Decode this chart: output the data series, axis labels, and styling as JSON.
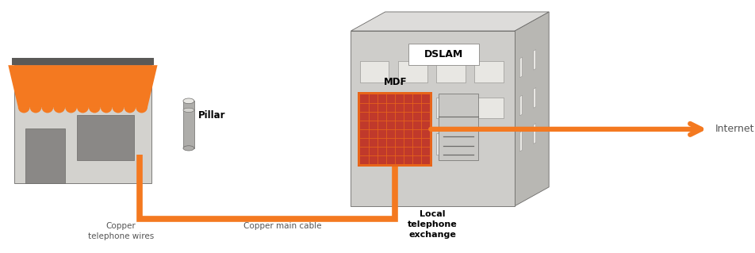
{
  "bg_color": "#ffffff",
  "orange": "#F47920",
  "gray_light": "#D3D2CE",
  "gray_med": "#AEADAA",
  "gray_dark": "#8A8886",
  "gray_darker": "#6B6A68",
  "gray_very_light": "#E8E7E3",
  "roof_top": "#5A5957",
  "exchange_front": "#CECDCA",
  "exchange_side": "#B8B7B3",
  "exchange_top": "#DDDCDA",
  "mdf_red": "#C0392B",
  "mdf_orange_border": "#E8651A",
  "dslam_body": "#C8C7C4",
  "dslam_top": "#B5B4B0",
  "text_color": "#555555",
  "labels": {
    "copper_wires": "Copper\ntelephone wires",
    "pillar": "Pillar",
    "copper_cable": "Copper main cable",
    "local_exchange": "Local\ntelephone\nexchange",
    "dslam": "DSLAM",
    "mdf": "MDF",
    "internet": "Internet"
  },
  "figsize": [
    9.52,
    3.19
  ],
  "dpi": 100
}
